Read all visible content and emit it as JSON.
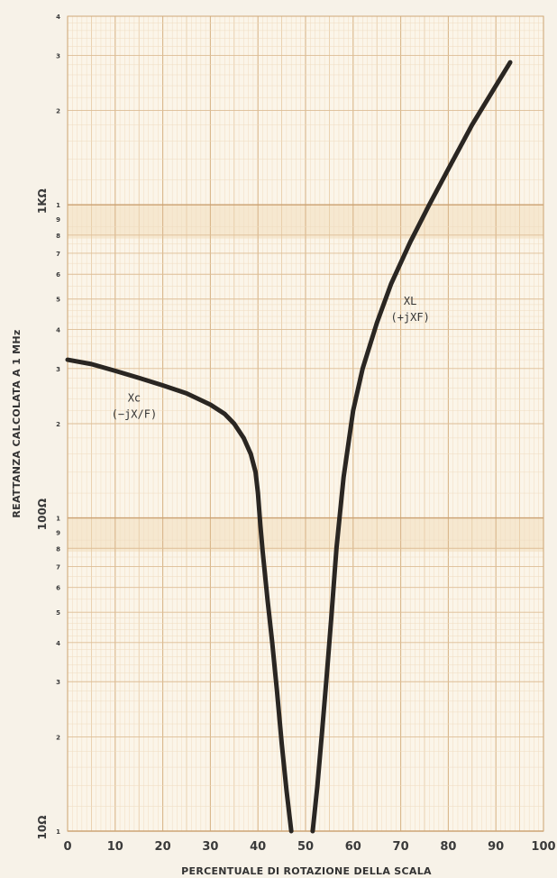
{
  "chart_data": {
    "type": "line",
    "xlabel": "PERCENTUALE DI ROTAZIONE DELLA SCALA",
    "ylabel": "REATTANZA CALCOLATA A 1 MHz",
    "xlim": [
      0,
      100
    ],
    "ylim": [
      10,
      4000
    ],
    "yscale": "log",
    "grid": true,
    "x_ticks": [
      "0",
      "10",
      "20",
      "30",
      "40",
      "50",
      "60",
      "70",
      "80",
      "90",
      "100"
    ],
    "y_decade_labels": [
      {
        "value": 10,
        "label": "10Ω"
      },
      {
        "value": 100,
        "label": "100Ω"
      },
      {
        "value": 1000,
        "label": "1KΩ"
      }
    ],
    "y_minor_labels": [
      {
        "value": 10,
        "label": "1"
      },
      {
        "value": 20,
        "label": "2"
      },
      {
        "value": 30,
        "label": "3"
      },
      {
        "value": 40,
        "label": "4"
      },
      {
        "value": 50,
        "label": "5"
      },
      {
        "value": 60,
        "label": "6"
      },
      {
        "value": 70,
        "label": "7"
      },
      {
        "value": 80,
        "label": "8"
      },
      {
        "value": 90,
        "label": "9"
      },
      {
        "value": 100,
        "label": "1"
      },
      {
        "value": 200,
        "label": "2"
      },
      {
        "value": 300,
        "label": "3"
      },
      {
        "value": 400,
        "label": "4"
      },
      {
        "value": 500,
        "label": "5"
      },
      {
        "value": 600,
        "label": "6"
      },
      {
        "value": 700,
        "label": "7"
      },
      {
        "value": 800,
        "label": "8"
      },
      {
        "value": 900,
        "label": "9"
      },
      {
        "value": 1000,
        "label": "1"
      },
      {
        "value": 2000,
        "label": "2"
      },
      {
        "value": 3000,
        "label": "3"
      },
      {
        "value": 4000,
        "label": "4"
      }
    ],
    "series": [
      {
        "name": "Xc (−jX/F)",
        "label_main": "Xc",
        "label_sub": "(−jX/F)",
        "x": [
          0,
          5,
          10,
          15,
          20,
          25,
          30,
          33,
          35,
          37,
          38.5,
          39.5,
          40,
          40.5,
          41,
          42,
          43,
          44,
          45,
          46,
          47
        ],
        "y": [
          320,
          310,
          295,
          280,
          265,
          250,
          230,
          215,
          200,
          180,
          160,
          140,
          120,
          95,
          78,
          55,
          40,
          28,
          19,
          13.5,
          10
        ]
      },
      {
        "name": "XL (+jXF)",
        "label_main": "XL",
        "label_sub": "(+jXF)",
        "x": [
          51.5,
          52.5,
          53.5,
          54.5,
          55.5,
          56.5,
          58,
          60,
          62,
          65,
          68,
          72,
          76,
          80,
          85,
          90,
          93
        ],
        "y": [
          10,
          14,
          21,
          32,
          50,
          80,
          135,
          220,
          300,
          420,
          560,
          760,
          1000,
          1300,
          1800,
          2400,
          2850
        ]
      }
    ]
  }
}
